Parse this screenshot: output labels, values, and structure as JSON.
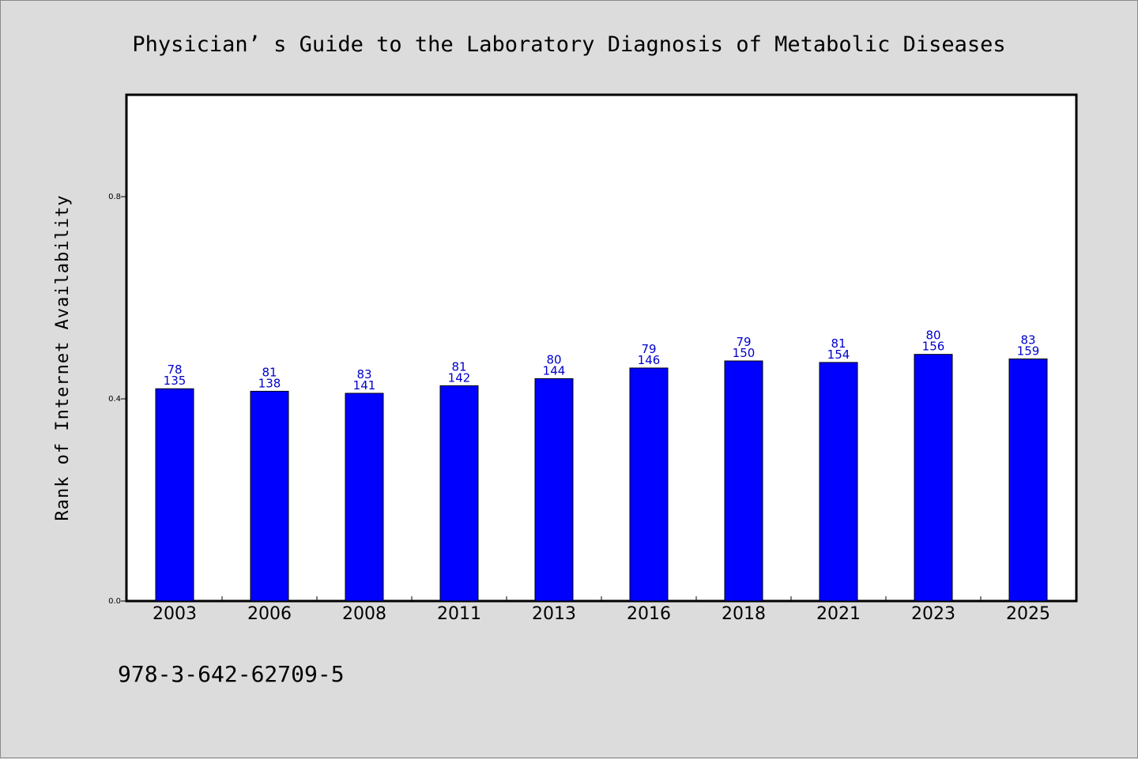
{
  "chart_data": {
    "type": "bar",
    "title": "Physician’ s Guide to the Laboratory Diagnosis of Metabolic Diseases",
    "ylabel": "Rank of Internet Availability",
    "xlabel": "",
    "categories": [
      "2003",
      "2006",
      "2008",
      "2011",
      "2013",
      "2016",
      "2018",
      "2021",
      "2023",
      "2025"
    ],
    "values": [
      0.42,
      0.415,
      0.411,
      0.426,
      0.44,
      0.461,
      0.475,
      0.472,
      0.488,
      0.479
    ],
    "labels_top": [
      "78",
      "81",
      "83",
      "81",
      "80",
      "79",
      "79",
      "81",
      "80",
      "83"
    ],
    "labels_bottom": [
      "135",
      "138",
      "141",
      "142",
      "144",
      "146",
      "150",
      "154",
      "156",
      "159"
    ],
    "ylim": [
      0,
      1.0
    ],
    "yticks": [
      0.0,
      0.4,
      0.8
    ],
    "ytick_labels": [
      "0.0",
      "0.4",
      "0.8"
    ],
    "bar_color": "#0000ff",
    "label_color": "#0000cc",
    "grid": false,
    "footer": "978-3-642-62709-5"
  }
}
